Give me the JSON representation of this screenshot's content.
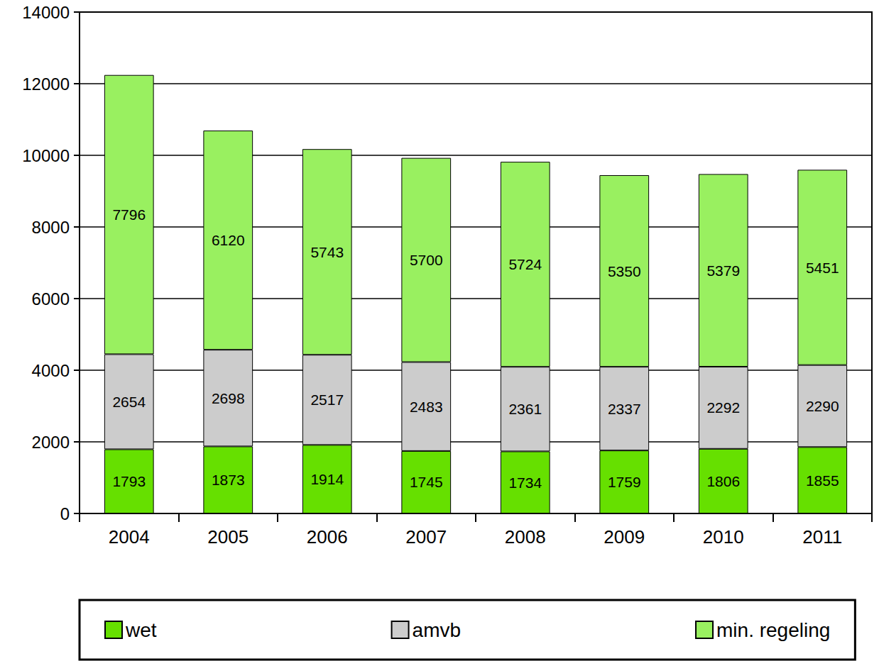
{
  "chart_data": {
    "type": "bar",
    "categories": [
      "2004",
      "2005",
      "2006",
      "2007",
      "2008",
      "2009",
      "2010",
      "2011"
    ],
    "series": [
      {
        "name": "wet",
        "color": "#66e000",
        "values": [
          1793,
          1873,
          1914,
          1745,
          1734,
          1759,
          1806,
          1855
        ]
      },
      {
        "name": "amvb",
        "color": "#cccccc",
        "values": [
          2654,
          2698,
          2517,
          2483,
          2361,
          2337,
          2292,
          2290
        ]
      },
      {
        "name": "min. regeling",
        "color": "#99f060",
        "values": [
          7796,
          6120,
          5743,
          5700,
          5724,
          5350,
          5379,
          5451
        ]
      }
    ],
    "ylim": [
      0,
      14000
    ],
    "yticks": [
      0,
      2000,
      4000,
      6000,
      8000,
      10000,
      12000,
      14000
    ],
    "grid": true,
    "stacked": true,
    "data_labels": true,
    "legend": "bottom"
  }
}
